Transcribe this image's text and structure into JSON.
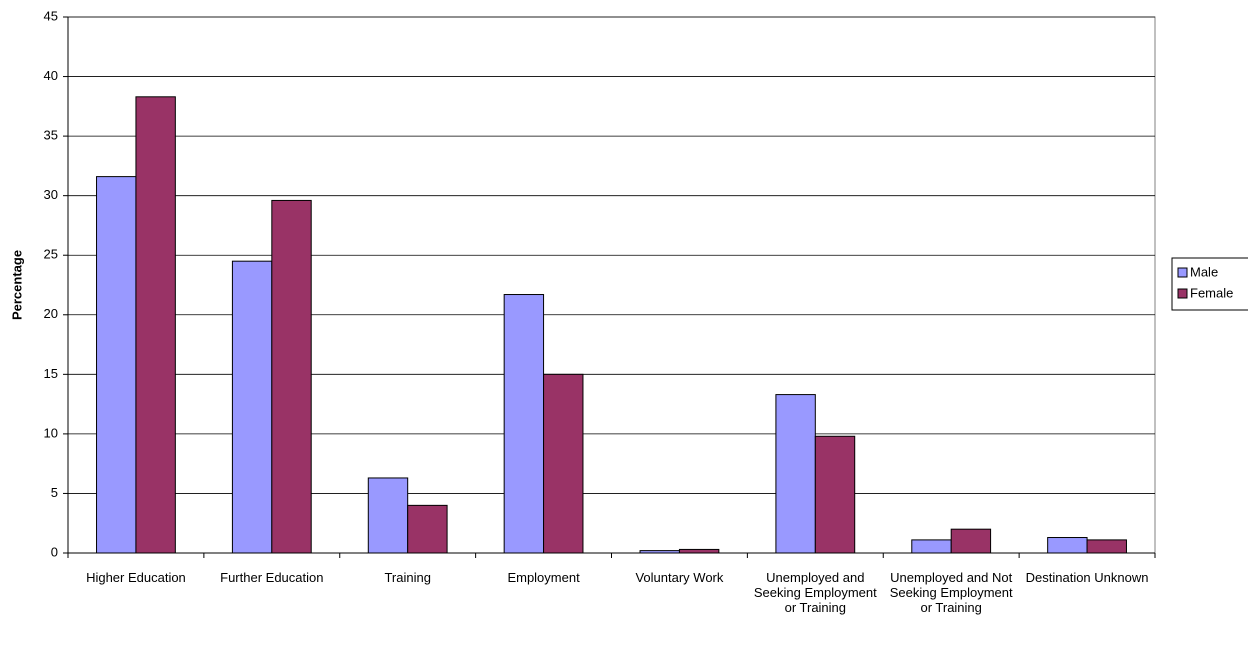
{
  "chart_data": {
    "type": "bar",
    "y_label": "Percentage",
    "categories": [
      "Higher Education",
      "Further Education",
      "Training",
      "Employment",
      "Voluntary Work",
      "Unemployed and Seeking Employment or Training",
      "Unemployed and Not Seeking Employment or Training",
      "Destination Unknown"
    ],
    "series": [
      {
        "name": "Male",
        "color": "#9999ff",
        "values": [
          31.6,
          24.5,
          6.3,
          21.7,
          0.2,
          13.3,
          1.1,
          1.3
        ]
      },
      {
        "name": "Female",
        "color": "#993366",
        "values": [
          38.3,
          29.6,
          4.0,
          15.0,
          0.3,
          9.8,
          2.0,
          1.1
        ]
      }
    ],
    "ylim": [
      0,
      45
    ],
    "yticks": [
      0,
      5,
      10,
      15,
      20,
      25,
      30,
      35,
      40,
      45
    ],
    "grid": true,
    "legend": "right"
  }
}
